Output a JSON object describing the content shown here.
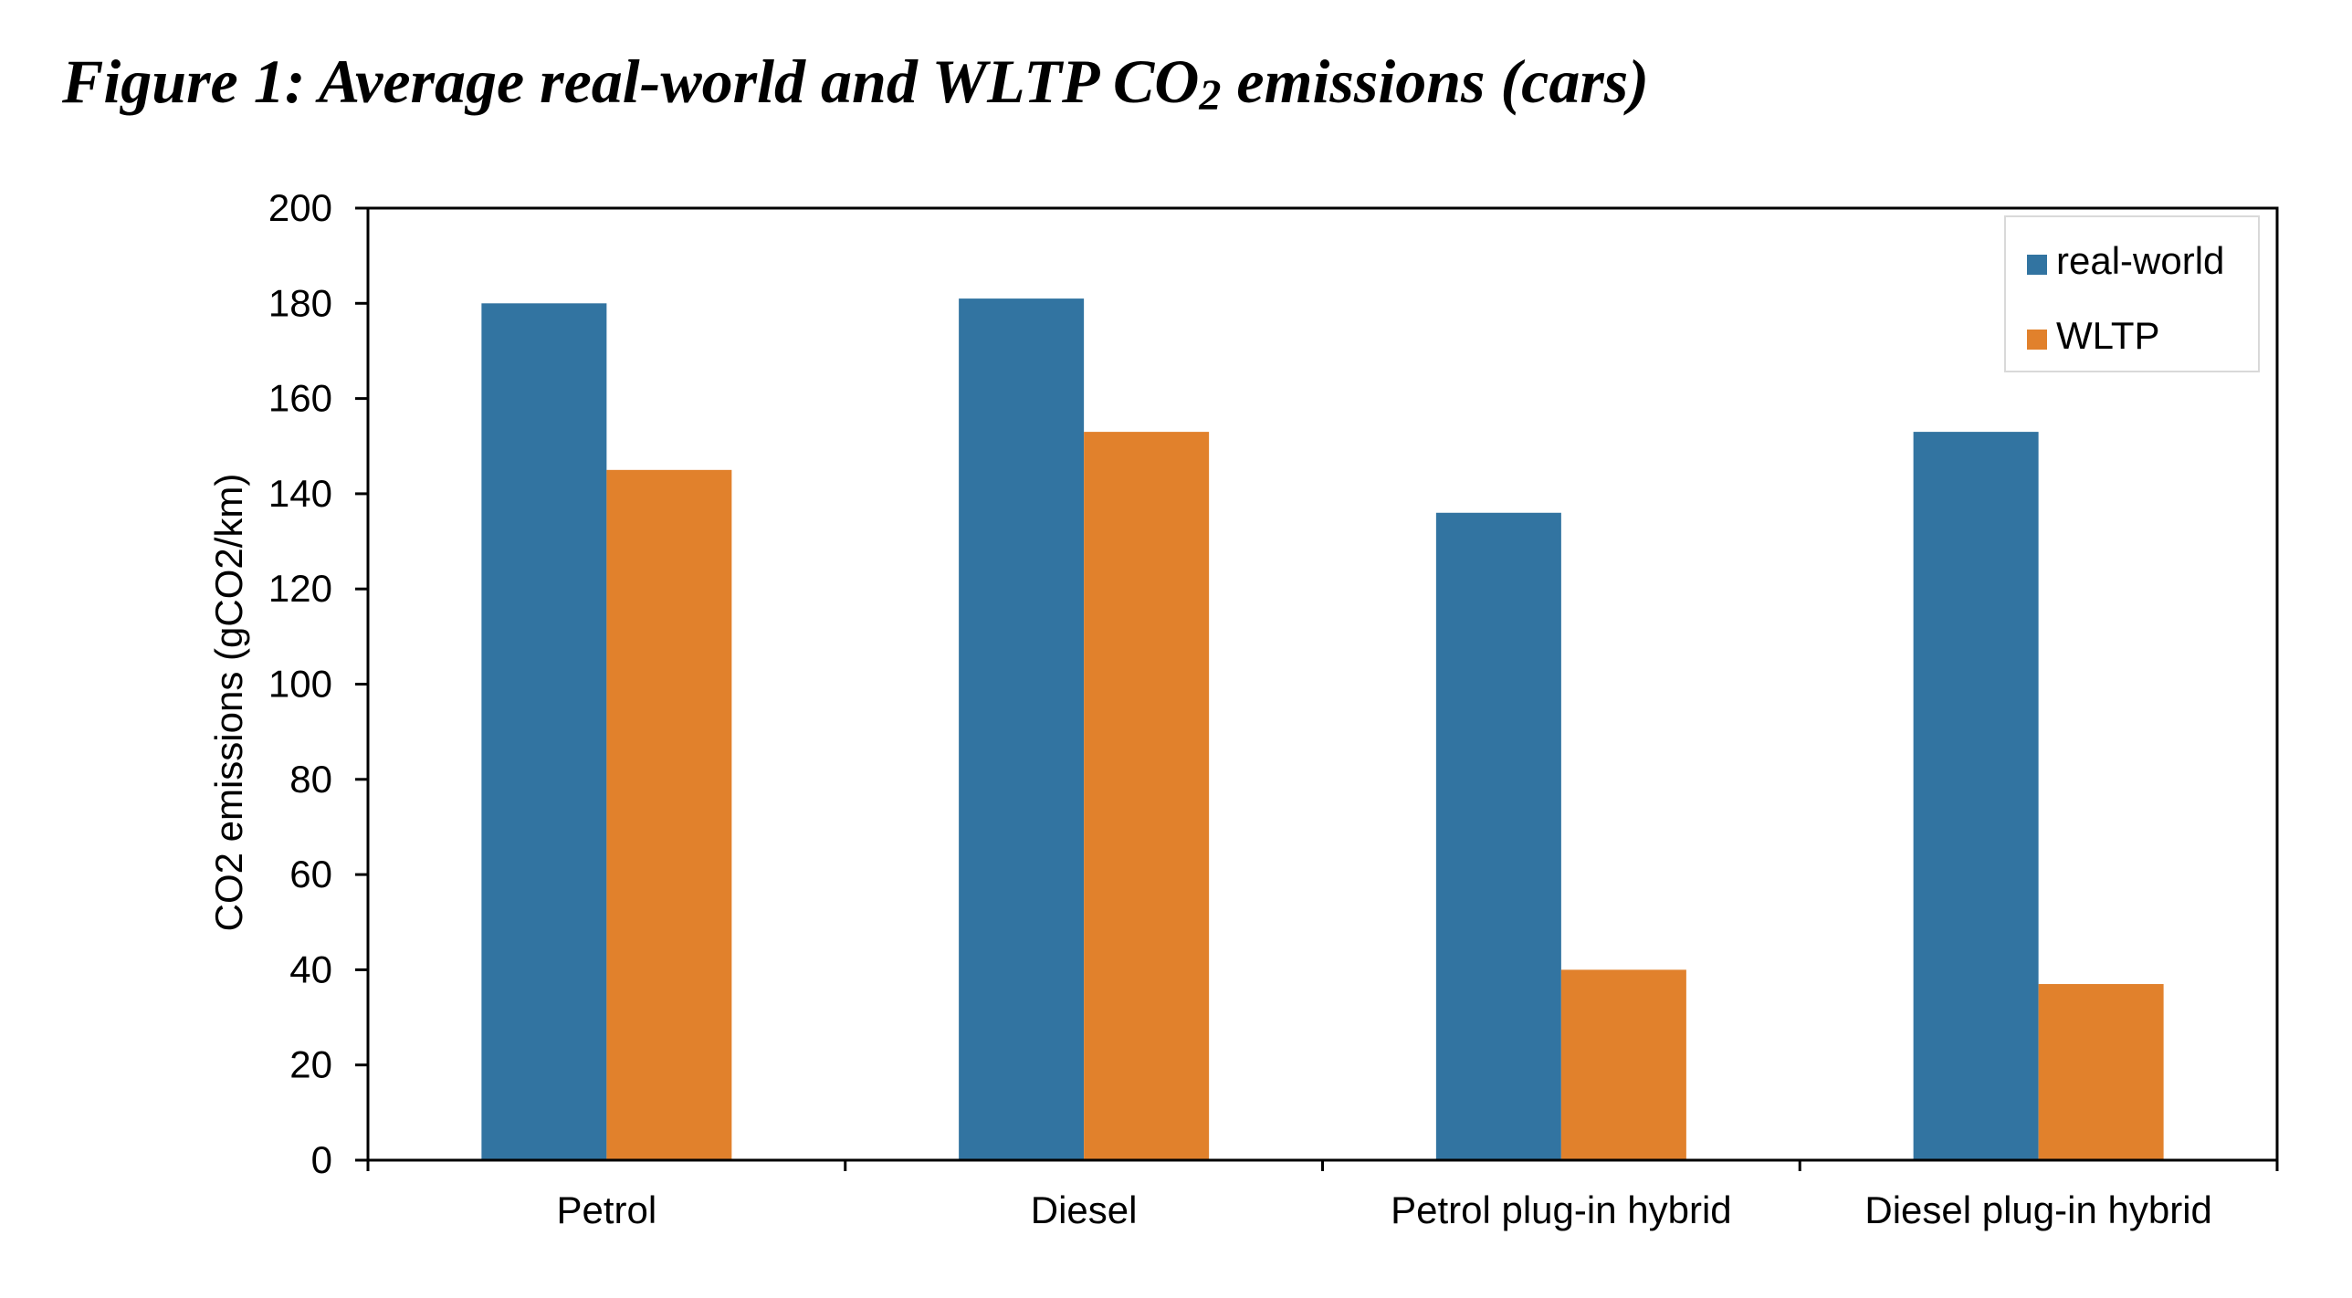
{
  "figure": {
    "title_main": "Figure 1: Average real-world and WLTP CO",
    "title_sub": "2",
    "title_end": " emissions (cars)"
  },
  "colors": {
    "real_world": "#3274a1",
    "wltp": "#e1812c",
    "axis": "#000000",
    "legend_border": "#d9d9d9"
  },
  "chart_data": {
    "type": "bar",
    "categories": [
      "Petrol",
      "Diesel",
      "Petrol plug-in hybrid",
      "Diesel plug-in hybrid"
    ],
    "series": [
      {
        "name": "real-world",
        "values": [
          180,
          181,
          136,
          153
        ]
      },
      {
        "name": "WLTP",
        "values": [
          145,
          153,
          40,
          37
        ]
      }
    ],
    "ylabel": "CO2 emissions (gCO2/km)",
    "xlabel": "",
    "ylim": [
      0,
      200
    ],
    "yticks": [
      0,
      20,
      40,
      60,
      80,
      100,
      120,
      140,
      160,
      180,
      200
    ],
    "grid": false,
    "legend_position": "top-right"
  }
}
